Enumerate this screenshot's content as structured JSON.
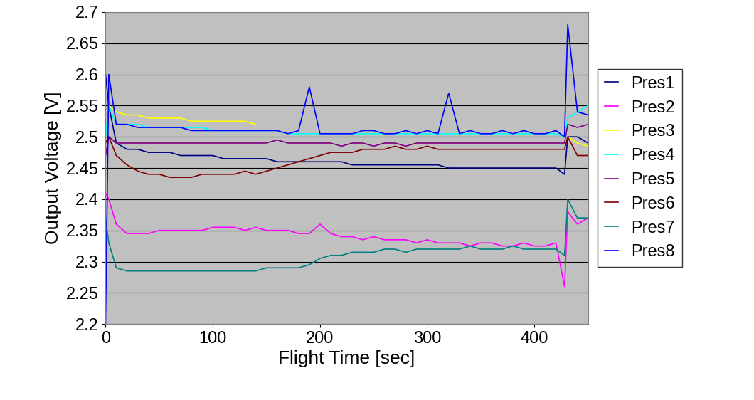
{
  "chart_data": {
    "type": "line",
    "x_label": "Flight Time [sec]",
    "y_label": "Output Voltage [V]",
    "x": [
      0,
      3,
      10,
      20,
      30,
      40,
      50,
      60,
      70,
      80,
      90,
      100,
      110,
      120,
      130,
      140,
      150,
      160,
      170,
      180,
      190,
      200,
      210,
      220,
      230,
      240,
      250,
      260,
      270,
      280,
      290,
      300,
      310,
      320,
      330,
      340,
      350,
      360,
      370,
      380,
      390,
      400,
      410,
      420,
      428,
      431,
      440,
      450
    ],
    "xlim": [
      0,
      450
    ],
    "xticks": [
      0,
      100,
      200,
      300,
      400
    ],
    "ylim": [
      2.2,
      2.7
    ],
    "yticks": [
      2.2,
      2.25,
      2.3,
      2.35,
      2.4,
      2.45,
      2.5,
      2.55,
      2.6,
      2.65,
      2.7
    ],
    "grid": true,
    "legend": "right",
    "series": [
      {
        "name": "Pres1",
        "color": "#000080",
        "values": [
          2.6,
          2.55,
          2.49,
          2.48,
          2.48,
          2.475,
          2.475,
          2.475,
          2.47,
          2.47,
          2.47,
          2.47,
          2.465,
          2.465,
          2.465,
          2.465,
          2.465,
          2.46,
          2.46,
          2.46,
          2.46,
          2.46,
          2.46,
          2.46,
          2.455,
          2.455,
          2.455,
          2.455,
          2.455,
          2.455,
          2.455,
          2.455,
          2.455,
          2.45,
          2.45,
          2.45,
          2.45,
          2.45,
          2.45,
          2.45,
          2.45,
          2.45,
          2.45,
          2.45,
          2.44,
          2.5,
          2.5,
          2.49
        ]
      },
      {
        "name": "Pres2",
        "color": "#ff00ff",
        "values": [
          2.41,
          2.4,
          2.36,
          2.345,
          2.345,
          2.345,
          2.35,
          2.35,
          2.35,
          2.35,
          2.35,
          2.355,
          2.355,
          2.355,
          2.35,
          2.355,
          2.35,
          2.35,
          2.35,
          2.345,
          2.345,
          2.36,
          2.345,
          2.34,
          2.34,
          2.335,
          2.34,
          2.335,
          2.335,
          2.335,
          2.33,
          2.335,
          2.33,
          2.33,
          2.33,
          2.325,
          2.33,
          2.33,
          2.325,
          2.325,
          2.33,
          2.325,
          2.325,
          2.33,
          2.26,
          2.38,
          2.36,
          2.37
        ]
      },
      {
        "name": "Pres3",
        "color": "#ffff00",
        "values": [
          2.5,
          2.55,
          2.54,
          2.535,
          2.535,
          2.53,
          2.53,
          2.53,
          2.53,
          2.525,
          2.525,
          2.525,
          2.525,
          2.525,
          2.525,
          2.52,
          null,
          null,
          null,
          null,
          null,
          null,
          null,
          null,
          null,
          null,
          null,
          null,
          null,
          null,
          null,
          null,
          null,
          null,
          null,
          null,
          null,
          null,
          null,
          null,
          null,
          null,
          null,
          null,
          null,
          2.5,
          2.49,
          2.485
        ]
      },
      {
        "name": "Pres4",
        "color": "#00ffff",
        "values": [
          2.5,
          2.55,
          2.52,
          2.52,
          2.52,
          2.515,
          2.515,
          2.515,
          2.515,
          2.515,
          2.515,
          2.51,
          2.51,
          2.51,
          2.51,
          2.51,
          2.51,
          2.51,
          2.505,
          2.505,
          2.505,
          2.505,
          2.505,
          2.505,
          2.505,
          2.505,
          2.505,
          2.505,
          2.505,
          2.505,
          2.505,
          2.505,
          2.505,
          2.505,
          2.505,
          2.505,
          2.505,
          2.505,
          2.505,
          2.505,
          2.505,
          2.505,
          2.505,
          2.505,
          2.5,
          2.53,
          2.54,
          2.55
        ]
      },
      {
        "name": "Pres5",
        "color": "#800080",
        "values": [
          2.47,
          2.5,
          2.49,
          2.49,
          2.49,
          2.49,
          2.49,
          2.49,
          2.49,
          2.49,
          2.49,
          2.49,
          2.49,
          2.49,
          2.49,
          2.49,
          2.49,
          2.495,
          2.49,
          2.49,
          2.49,
          2.49,
          2.49,
          2.485,
          2.49,
          2.49,
          2.485,
          2.49,
          2.49,
          2.485,
          2.49,
          2.49,
          2.49,
          2.49,
          2.49,
          2.49,
          2.49,
          2.49,
          2.49,
          2.49,
          2.49,
          2.49,
          2.49,
          2.49,
          2.49,
          2.52,
          2.515,
          2.52
        ]
      },
      {
        "name": "Pres6",
        "color": "#800000",
        "values": [
          2.49,
          2.5,
          2.47,
          2.455,
          2.445,
          2.44,
          2.44,
          2.435,
          2.435,
          2.435,
          2.44,
          2.44,
          2.44,
          2.44,
          2.445,
          2.44,
          2.445,
          2.45,
          2.455,
          2.46,
          2.465,
          2.47,
          2.475,
          2.475,
          2.475,
          2.48,
          2.48,
          2.48,
          2.485,
          2.48,
          2.48,
          2.485,
          2.48,
          2.48,
          2.48,
          2.48,
          2.48,
          2.48,
          2.48,
          2.48,
          2.48,
          2.48,
          2.48,
          2.48,
          2.48,
          2.5,
          2.47,
          2.47
        ]
      },
      {
        "name": "Pres7",
        "color": "#008080",
        "values": [
          2.37,
          2.33,
          2.29,
          2.285,
          2.285,
          2.285,
          2.285,
          2.285,
          2.285,
          2.285,
          2.285,
          2.285,
          2.285,
          2.285,
          2.285,
          2.285,
          2.29,
          2.29,
          2.29,
          2.29,
          2.295,
          2.305,
          2.31,
          2.31,
          2.315,
          2.315,
          2.315,
          2.32,
          2.32,
          2.315,
          2.32,
          2.32,
          2.32,
          2.32,
          2.32,
          2.325,
          2.32,
          2.32,
          2.32,
          2.325,
          2.32,
          2.32,
          2.32,
          2.32,
          2.31,
          2.4,
          2.37,
          2.37
        ]
      },
      {
        "name": "Pres8",
        "color": "#0000ff",
        "values": [
          2.2,
          2.6,
          2.52,
          2.52,
          2.515,
          2.515,
          2.515,
          2.515,
          2.515,
          2.51,
          2.51,
          2.51,
          2.51,
          2.51,
          2.51,
          2.51,
          2.51,
          2.51,
          2.505,
          2.51,
          2.58,
          2.505,
          2.505,
          2.505,
          2.505,
          2.51,
          2.51,
          2.505,
          2.505,
          2.51,
          2.505,
          2.51,
          2.505,
          2.57,
          2.505,
          2.51,
          2.505,
          2.505,
          2.51,
          2.505,
          2.51,
          2.505,
          2.505,
          2.51,
          2.5,
          2.68,
          2.54,
          2.535
        ]
      }
    ]
  }
}
